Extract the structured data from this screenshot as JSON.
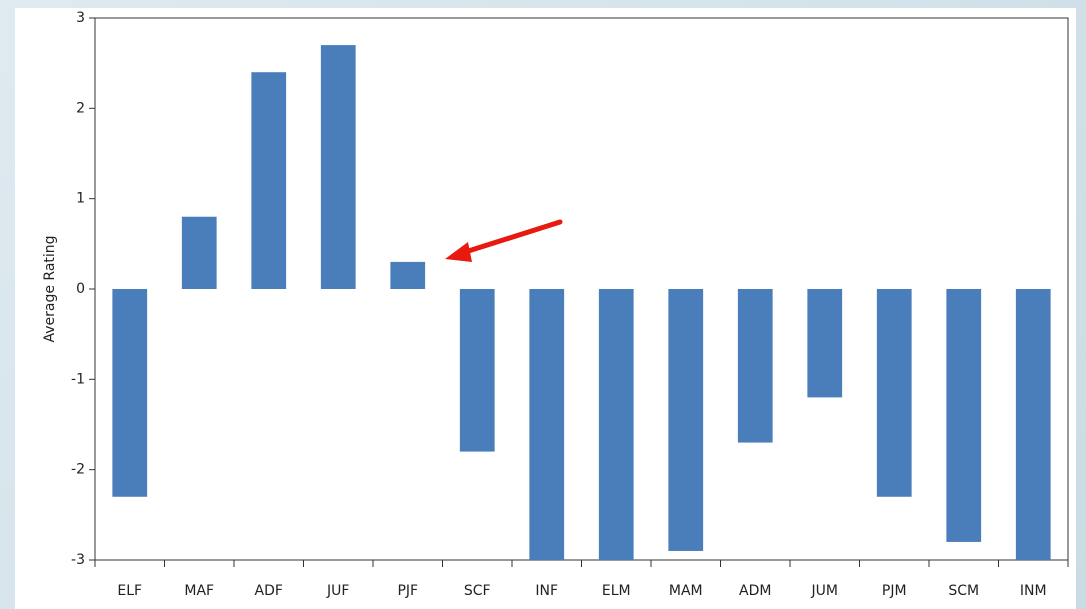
{
  "chart_data": {
    "type": "bar",
    "y_label": "Average Rating",
    "categories": [
      "ELF",
      "MAF",
      "ADF",
      "JUF",
      "PJF",
      "SCF",
      "INF",
      "ELM",
      "MAM",
      "ADM",
      "JUM",
      "PJM",
      "SCM",
      "INM"
    ],
    "values": [
      -2.3,
      0.8,
      2.4,
      2.7,
      0.3,
      -1.8,
      -3,
      -3,
      -2.9,
      -1.7,
      -1.2,
      -2.3,
      -2.8,
      -3
    ],
    "color": "#4a7ebb",
    "ylim": [
      -3,
      3
    ],
    "yticks": [
      -3,
      -2,
      -1,
      0,
      1,
      2,
      3
    ],
    "grid": false
  }
}
